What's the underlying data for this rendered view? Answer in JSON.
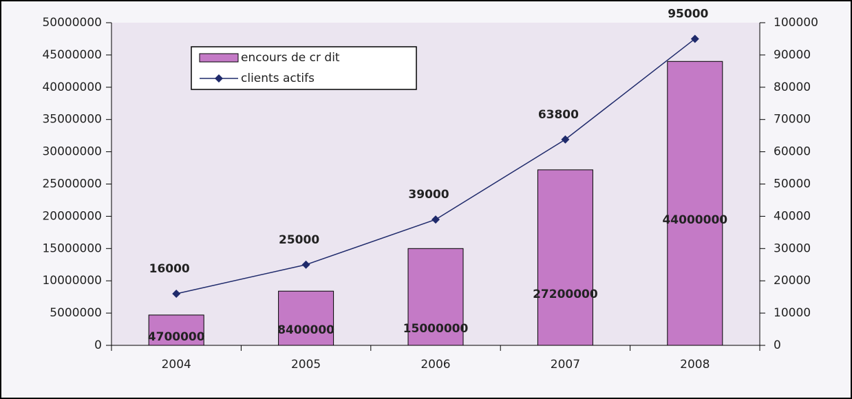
{
  "chart_data": {
    "type": "combo",
    "categories": [
      "2004",
      "2005",
      "2006",
      "2007",
      "2008"
    ],
    "series": [
      {
        "name": "encours de cr dit",
        "type": "bar",
        "color": "#c47ac6",
        "axis": "y",
        "values": [
          4700000,
          8400000,
          15000000,
          27200000,
          44000000
        ]
      },
      {
        "name": "clients actifs",
        "type": "line",
        "color": "#1f2a6b",
        "axis": "y2",
        "values": [
          16000,
          25000,
          39000,
          63800,
          95000
        ]
      }
    ],
    "ylim": [
      0,
      50000000
    ],
    "yticks": [
      0,
      5000000,
      10000000,
      15000000,
      20000000,
      25000000,
      30000000,
      35000000,
      40000000,
      45000000,
      50000000
    ],
    "y2lim": [
      0,
      100000
    ],
    "y2ticks": [
      0,
      10000,
      20000,
      30000,
      40000,
      50000,
      60000,
      70000,
      80000,
      90000,
      100000
    ],
    "grid": false,
    "legend": "top-left"
  }
}
